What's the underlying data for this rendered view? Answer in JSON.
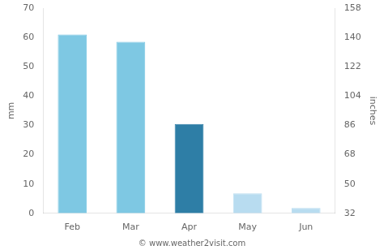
{
  "chart_data": {
    "type": "bar",
    "categories": [
      "Feb",
      "Mar",
      "Apr",
      "May",
      "Jun"
    ],
    "values": [
      61,
      58.5,
      30.5,
      6.8,
      1.8
    ],
    "colors": [
      "#7EC8E3",
      "#7EC8E3",
      "#2E7EA6",
      "#B8DCF0",
      "#B8DCF0"
    ],
    "y_label": "mm",
    "y2_label": "inches",
    "ylim": [
      0,
      70
    ],
    "yticks": [
      0,
      10,
      20,
      30,
      40,
      50,
      60,
      70
    ],
    "y2lim": [
      32,
      158
    ],
    "y2ticks": [
      32,
      50,
      68,
      86,
      104,
      122,
      140,
      158
    ],
    "annotations": [
      {
        "text": "© www.weather2visit.com"
      }
    ],
    "grid": false
  }
}
